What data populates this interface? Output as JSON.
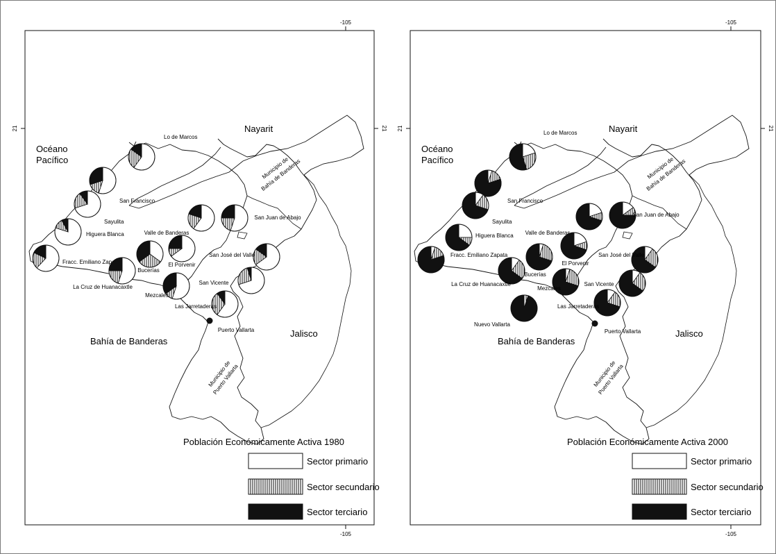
{
  "colors": {
    "frame": "#7a7a7a",
    "outline": "#111111",
    "primario": "#ffffff",
    "secundario_hatch": "#111111",
    "terciario": "#111111"
  },
  "coord_labels": {
    "lon": "-105",
    "lat": "21"
  },
  "map_labels": {
    "nayarit": "Nayarit",
    "oceano_1": "Océano",
    "oceano_2": "Pacífico",
    "jalisco": "Jalisco",
    "bahia": "Bahía de Banderas",
    "mun_bahia_1": "Municipio de",
    "mun_bahia_2": "Bahía de Banderas",
    "mun_pv_1": "Municipio de",
    "mun_pv_2": "Puerto Vallarta"
  },
  "legend": {
    "primario": "Sector primario",
    "secundario": "Sector secundario",
    "terciario": "Sector terciario"
  },
  "panels": [
    {
      "key": "p1980",
      "legend_title": "Población Económicamente Activa 1980",
      "towns": [
        {
          "name": "Lo de Marcos",
          "shares": [
            0.6,
            0.25,
            0.15
          ]
        },
        {
          "name": "San Francisco",
          "shares": [
            0.55,
            0.15,
            0.3
          ]
        },
        {
          "name": "Sayulita",
          "shares": [
            0.7,
            0.2,
            0.1
          ]
        },
        {
          "name": "Higuera Blanca",
          "shares": [
            0.8,
            0.12,
            0.08
          ]
        },
        {
          "name": "Fracc. Emiliano Zapata",
          "shares": [
            0.62,
            0.2,
            0.18
          ]
        },
        {
          "name": "La Cruz de Huanacaxtle",
          "shares": [
            0.55,
            0.2,
            0.25
          ]
        },
        {
          "name": "Bucerías",
          "shares": [
            0.35,
            0.3,
            0.35
          ]
        },
        {
          "name": "Valle de Banderas",
          "shares": [
            0.6,
            0.2,
            0.2
          ]
        },
        {
          "name": "El Porvenir",
          "shares": [
            0.65,
            0.1,
            0.25
          ]
        },
        {
          "name": "San Juan de Abajo",
          "shares": [
            0.55,
            0.2,
            0.25
          ]
        },
        {
          "name": "San José del Valle",
          "shares": [
            0.65,
            0.2,
            0.15
          ]
        },
        {
          "name": "San Vicente",
          "shares": [
            0.7,
            0.25,
            0.05
          ]
        },
        {
          "name": "Mezcales",
          "shares": [
            0.55,
            0.1,
            0.35
          ]
        },
        {
          "name": "Las Jarretaderas",
          "shares": [
            0.6,
            0.3,
            0.1
          ]
        },
        {
          "name": "Puerto Vallarta",
          "shares": null
        }
      ]
    },
    {
      "key": "p2000",
      "legend_title": "Población Económicamente Activa 2000",
      "towns": [
        {
          "name": "Lo de Marcos",
          "shares": [
            0.2,
            0.25,
            0.55
          ]
        },
        {
          "name": "San Francisco",
          "shares": [
            0.05,
            0.15,
            0.8
          ]
        },
        {
          "name": "Sayulita",
          "shares": [
            0.1,
            0.2,
            0.7
          ]
        },
        {
          "name": "Higuera Blanca",
          "shares": [
            0.25,
            0.1,
            0.65
          ]
        },
        {
          "name": "Fracc. Emiliano Zapata",
          "shares": [
            0.05,
            0.15,
            0.8
          ]
        },
        {
          "name": "La Cruz de Huanacaxtle",
          "shares": [
            0.1,
            0.25,
            0.65
          ]
        },
        {
          "name": "Bucerías",
          "shares": [
            0.05,
            0.25,
            0.7
          ]
        },
        {
          "name": "Valle de Banderas",
          "shares": [
            0.2,
            0.1,
            0.7
          ]
        },
        {
          "name": "El Porvenir",
          "shares": [
            0.2,
            0.1,
            0.7
          ]
        },
        {
          "name": "San Juan de Abajo",
          "shares": [
            0.15,
            0.1,
            0.75
          ]
        },
        {
          "name": "San José del Valle",
          "shares": [
            0.1,
            0.25,
            0.65
          ]
        },
        {
          "name": "San Vicente",
          "shares": [
            0.1,
            0.25,
            0.65
          ]
        },
        {
          "name": "Mezcales",
          "shares": [
            0.05,
            0.25,
            0.7
          ]
        },
        {
          "name": "Las Jarretaderas",
          "shares": [
            0.1,
            0.2,
            0.7
          ]
        },
        {
          "name": "Nuevo Vallarta",
          "shares": [
            0.0,
            0.05,
            0.95
          ]
        },
        {
          "name": "Puerto Vallarta",
          "shares": null
        }
      ]
    }
  ]
}
